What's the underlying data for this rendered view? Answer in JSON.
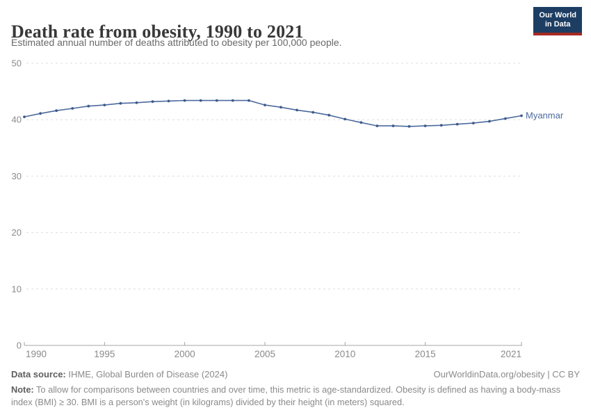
{
  "header": {
    "title": "Death rate from obesity, 1990 to 2021",
    "subtitle": "Estimated annual number of deaths attributed to obesity per 100,000 people.",
    "logo": {
      "line1": "Our World",
      "line2": "in Data",
      "bg_color": "#1d3d63",
      "accent_color": "#a62a21"
    }
  },
  "chart_data": {
    "type": "line",
    "title": "Death rate from obesity, 1990 to 2021",
    "xlabel": "",
    "ylabel": "",
    "xlim": [
      1990,
      2021
    ],
    "ylim": [
      0,
      50
    ],
    "x_ticks": [
      1990,
      1995,
      2000,
      2005,
      2010,
      2015,
      2021
    ],
    "y_ticks": [
      0,
      10,
      20,
      30,
      40,
      50
    ],
    "grid": "horizontal-dashed",
    "legend_position": "end-of-line-label",
    "colors": {
      "line": "#4c6a9c",
      "marker": "#3d5a8f",
      "grid": "#dedede",
      "axis": "#a5a5a5",
      "tick_label": "#8a8a8a"
    },
    "series": [
      {
        "name": "Myanmar",
        "color": "#4c6a9c",
        "x": [
          1990,
          1991,
          1992,
          1993,
          1994,
          1995,
          1996,
          1997,
          1998,
          1999,
          2000,
          2001,
          2002,
          2003,
          2004,
          2005,
          2006,
          2007,
          2008,
          2009,
          2010,
          2011,
          2012,
          2013,
          2014,
          2015,
          2016,
          2017,
          2018,
          2019,
          2020,
          2021
        ],
        "values": [
          40.5,
          41.1,
          41.6,
          42.0,
          42.4,
          42.6,
          42.9,
          43.0,
          43.2,
          43.3,
          43.4,
          43.4,
          43.4,
          43.4,
          43.4,
          42.6,
          42.2,
          41.7,
          41.3,
          40.8,
          40.1,
          39.5,
          38.9,
          38.9,
          38.8,
          38.9,
          39.0,
          39.2,
          39.4,
          39.7,
          40.2,
          40.7
        ]
      }
    ]
  },
  "footer": {
    "datasource_label": "Data source:",
    "datasource_text": " IHME, Global Burden of Disease (2024)",
    "attribution": "OurWorldinData.org/obesity | CC BY",
    "note_label": "Note:",
    "note_text": " To allow for comparisons between countries and over time, this metric is age-standardized. Obesity is defined as having a body-mass index (BMI) ≥ 30. BMI is a person's weight (in kilograms) divided by their height (in meters) squared."
  }
}
